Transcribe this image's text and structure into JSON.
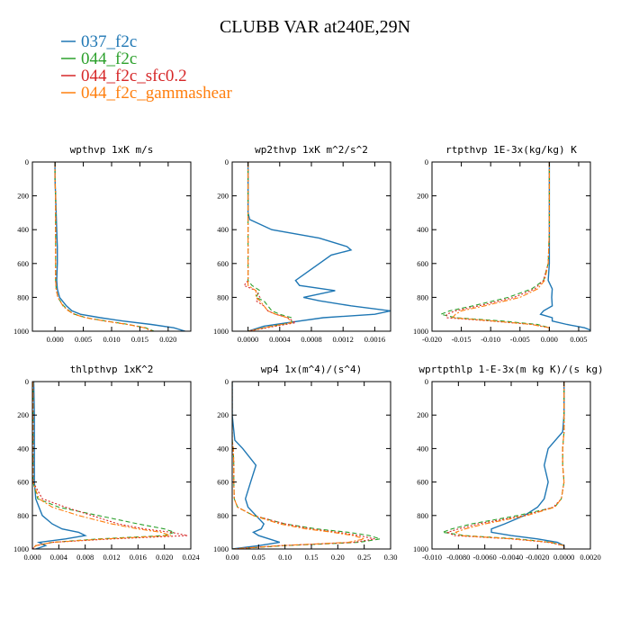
{
  "title": "CLUBB VAR at240E,29N",
  "legend": [
    {
      "label": "037_f2c",
      "color": "#1f77b4",
      "dash": "solid"
    },
    {
      "label": "044_f2c",
      "color": "#2ca02c",
      "dash": "dashed"
    },
    {
      "label": "044_f2c_sfc0.2",
      "color": "#d62728",
      "dash": "dotted"
    },
    {
      "label": "044_f2c_gammashear",
      "color": "#ff7f0e",
      "dash": "dashdot"
    }
  ],
  "chart_data": [
    {
      "type": "line",
      "title": "wpthvp  1xK m/s",
      "xlim": [
        -0.004,
        0.024
      ],
      "ylim": [
        1000,
        0
      ],
      "xticks": [
        "0.000",
        "0.005",
        "0.010",
        "0.015",
        "0.020"
      ],
      "xtick_values": [
        0,
        0.005,
        0.01,
        0.015,
        0.02
      ],
      "yticks": [
        0,
        200,
        400,
        600,
        800,
        1000
      ],
      "y": [
        0,
        100,
        200,
        300,
        400,
        500,
        600,
        700,
        750,
        800,
        850,
        880,
        900,
        920,
        940,
        960,
        980,
        1000
      ],
      "series": [
        {
          "name": "037_f2c",
          "values": [
            0,
            0,
            0.0001,
            0.0002,
            0.0003,
            0.0004,
            0.0004,
            0.0003,
            0.0004,
            0.0008,
            0.002,
            0.003,
            0.0045,
            0.008,
            0.012,
            0.017,
            0.021,
            0.023
          ]
        },
        {
          "name": "044_f2c",
          "values": [
            0,
            0,
            0.0001,
            0.0001,
            0.0001,
            0.0001,
            0.0001,
            0.0001,
            0.0002,
            0.0005,
            0.0015,
            0.0025,
            0.0035,
            0.0055,
            0.009,
            0.013,
            0.016,
            0.0175
          ]
        },
        {
          "name": "044_f2c_sfc0.2",
          "values": [
            0,
            0,
            0.0001,
            0.0001,
            0.0001,
            0.0001,
            0.0001,
            0.0001,
            0.0002,
            0.0005,
            0.0014,
            0.0024,
            0.0034,
            0.0054,
            0.0088,
            0.0128,
            0.0158,
            0.0172
          ]
        },
        {
          "name": "044_f2c_gammashear",
          "values": [
            0,
            0,
            0.0001,
            0.0001,
            0.0001,
            0.0001,
            0.0001,
            0.0001,
            0.0002,
            0.0005,
            0.0014,
            0.0024,
            0.0034,
            0.0054,
            0.0088,
            0.0128,
            0.0158,
            0.0172
          ]
        }
      ]
    },
    {
      "type": "line",
      "title": "wp2thvp  1xK m^2/s^2",
      "xlim": [
        -0.0002,
        0.0018
      ],
      "ylim": [
        1000,
        0
      ],
      "xticks": [
        "0.0000",
        "0.0004",
        "0.0008",
        "0.0012",
        "0.0016"
      ],
      "xtick_values": [
        0,
        0.0004,
        0.0008,
        0.0012,
        0.0016
      ],
      "yticks": [
        0,
        200,
        400,
        600,
        800,
        1000
      ],
      "y": [
        0,
        100,
        200,
        300,
        340,
        400,
        450,
        500,
        520,
        550,
        600,
        650,
        700,
        730,
        760,
        800,
        820,
        850,
        880,
        900,
        920,
        950,
        970,
        1000
      ],
      "series": [
        {
          "name": "037_f2c",
          "values": [
            0,
            0,
            0,
            0,
            2e-05,
            0.0003,
            0.0009,
            0.00125,
            0.0013,
            0.00105,
            0.0009,
            0.00075,
            0.0006,
            0.00065,
            0.0011,
            0.0007,
            0.0009,
            0.0013,
            0.0018,
            0.0016,
            0.00095,
            0.0005,
            0.0002,
            0
          ]
        },
        {
          "name": "044_f2c",
          "values": [
            0,
            0,
            0,
            0,
            0,
            0,
            0,
            0,
            0,
            0,
            0,
            0,
            0,
            5e-05,
            0.00015,
            0.0001,
            0.0002,
            0.00025,
            0.0003,
            0.0004,
            0.00055,
            0.00055,
            0.0003,
            0
          ]
        },
        {
          "name": "044_f2c_sfc0.2",
          "values": [
            0,
            0,
            0,
            0,
            0,
            0,
            0,
            0,
            0,
            0,
            0,
            0,
            0,
            -5e-05,
            0.0001,
            0.00015,
            0.0001,
            0.0002,
            0.00025,
            0.00035,
            0.0005,
            0.0006,
            0.00035,
            0
          ]
        },
        {
          "name": "044_f2c_gammashear",
          "values": [
            0,
            0,
            0,
            0,
            0,
            0,
            0,
            0,
            0,
            0,
            0,
            0,
            0,
            0,
            0.0001,
            0.0001,
            0.00015,
            0.0002,
            0.00025,
            0.00035,
            0.0005,
            0.00055,
            0.0003,
            0
          ]
        }
      ]
    },
    {
      "type": "line",
      "title": "rtpthvp  1E-3x(kg/kg) K",
      "xlim": [
        -0.02,
        0.007
      ],
      "ylim": [
        1000,
        0
      ],
      "xticks": [
        "-0.020",
        "-0.015",
        "-0.010",
        "-0.005",
        "0.000",
        "0.005"
      ],
      "xtick_values": [
        -0.02,
        -0.015,
        -0.01,
        -0.005,
        0,
        0.005
      ],
      "yticks": [
        0,
        200,
        400,
        600,
        800,
        1000
      ],
      "y": [
        0,
        200,
        400,
        600,
        700,
        750,
        800,
        850,
        880,
        900,
        920,
        940,
        960,
        980,
        1000
      ],
      "series": [
        {
          "name": "037_f2c",
          "values": [
            0,
            0,
            0,
            0,
            -0.0002,
            0.0005,
            0.0004,
            0.0005,
            -0.001,
            -0.0015,
            0.0005,
            0.0005,
            0.003,
            0.006,
            0.0075
          ]
        },
        {
          "name": "044_f2c",
          "values": [
            0,
            0,
            0,
            -0.0002,
            -0.001,
            -0.003,
            -0.007,
            -0.013,
            -0.017,
            -0.0185,
            -0.016,
            -0.008,
            -0.002,
            0,
            0
          ]
        },
        {
          "name": "044_f2c_sfc0.2",
          "values": [
            0,
            0,
            0,
            -0.0002,
            -0.001,
            -0.0025,
            -0.006,
            -0.012,
            -0.016,
            -0.0175,
            -0.0175,
            -0.01,
            -0.003,
            0,
            0
          ]
        },
        {
          "name": "044_f2c_gammashear",
          "values": [
            0,
            0,
            0,
            -0.0002,
            -0.0008,
            -0.002,
            -0.005,
            -0.011,
            -0.015,
            -0.016,
            -0.0165,
            -0.0095,
            -0.003,
            0,
            0
          ]
        }
      ]
    },
    {
      "type": "line",
      "title": "thlpthvp  1xK^2",
      "xlim": [
        0,
        0.024
      ],
      "ylim": [
        1000,
        0
      ],
      "xticks": [
        "0.000",
        "0.004",
        "0.008",
        "0.012",
        "0.016",
        "0.020",
        "0.024"
      ],
      "xtick_values": [
        0,
        0.004,
        0.008,
        0.012,
        0.016,
        0.02,
        0.024
      ],
      "yticks": [
        0,
        200,
        400,
        600,
        800,
        1000
      ],
      "y": [
        0,
        200,
        400,
        600,
        700,
        750,
        800,
        850,
        880,
        900,
        920,
        940,
        960,
        980,
        1000
      ],
      "series": [
        {
          "name": "037_f2c",
          "values": [
            0.0002,
            0.0003,
            0.0003,
            0.0003,
            0.0005,
            0.001,
            0.0015,
            0.003,
            0.0045,
            0.007,
            0.008,
            0.005,
            0.001,
            0.002,
            0.0005
          ]
        },
        {
          "name": "044_f2c",
          "values": [
            0.0001,
            0.0001,
            0.0001,
            0.0001,
            0.0008,
            0.004,
            0.01,
            0.016,
            0.02,
            0.0215,
            0.02,
            0.01,
            0.003,
            0.0005,
            0
          ]
        },
        {
          "name": "044_f2c_sfc0.2",
          "values": [
            0.0001,
            0.0001,
            0.0001,
            0.0001,
            0.0015,
            0.005,
            0.009,
            0.013,
            0.017,
            0.021,
            0.0235,
            0.012,
            0.003,
            0.0005,
            0
          ]
        },
        {
          "name": "044_f2c_gammashear",
          "values": [
            0.0001,
            0.0001,
            0.0001,
            0.0001,
            0.001,
            0.003,
            0.007,
            0.012,
            0.016,
            0.0195,
            0.021,
            0.011,
            0.003,
            0.0005,
            0
          ]
        }
      ]
    },
    {
      "type": "line",
      "title": "wp4  1x(m^4)/(s^4)",
      "xlim": [
        0,
        0.3
      ],
      "ylim": [
        1000,
        0
      ],
      "xticks": [
        "0.00",
        "0.05",
        "0.10",
        "0.15",
        "0.20",
        "0.25",
        "0.30"
      ],
      "xtick_values": [
        0,
        0.05,
        0.1,
        0.15,
        0.2,
        0.25,
        0.3
      ],
      "yticks": [
        0,
        200,
        400,
        600,
        800,
        1000
      ],
      "y": [
        0,
        200,
        350,
        400,
        500,
        600,
        700,
        750,
        800,
        850,
        880,
        900,
        920,
        940,
        960,
        980,
        1000
      ],
      "series": [
        {
          "name": "037_f2c",
          "values": [
            0,
            0,
            0.005,
            0.02,
            0.045,
            0.035,
            0.025,
            0.03,
            0.045,
            0.06,
            0.055,
            0.04,
            0.05,
            0.07,
            0.09,
            0.05,
            0
          ]
        },
        {
          "name": "044_f2c",
          "values": [
            0,
            0,
            0,
            0.002,
            0.003,
            0.003,
            0.004,
            0.01,
            0.04,
            0.1,
            0.16,
            0.22,
            0.26,
            0.28,
            0.24,
            0.1,
            0
          ]
        },
        {
          "name": "044_f2c_sfc0.2",
          "values": [
            0,
            0,
            0,
            0.002,
            0.003,
            0.003,
            0.004,
            0.01,
            0.04,
            0.1,
            0.15,
            0.2,
            0.24,
            0.27,
            0.23,
            0.09,
            0
          ]
        },
        {
          "name": "044_f2c_gammashear",
          "values": [
            0,
            0,
            0,
            0.002,
            0.003,
            0.003,
            0.004,
            0.01,
            0.04,
            0.09,
            0.14,
            0.19,
            0.23,
            0.25,
            0.22,
            0.09,
            0
          ]
        }
      ]
    },
    {
      "type": "line",
      "title": "wprtpthlp  1-E-3x(m kg K)/(s kg)",
      "xlim": [
        -0.01,
        0.002
      ],
      "ylim": [
        1000,
        0
      ],
      "xticks": [
        "-0.010",
        "-0.0080",
        "-0.0060",
        "-0.0040",
        "-0.0020",
        "0.0000",
        "0.0020"
      ],
      "xtick_values": [
        -0.01,
        -0.008,
        -0.006,
        -0.004,
        -0.002,
        0,
        0.002
      ],
      "yticks": [
        0,
        200,
        400,
        600,
        800,
        1000
      ],
      "y": [
        0,
        200,
        300,
        400,
        500,
        600,
        700,
        750,
        800,
        850,
        880,
        900,
        920,
        940,
        960,
        980,
        1000
      ],
      "series": [
        {
          "name": "037_f2c",
          "values": [
            0,
            0,
            -0.0001,
            -0.0012,
            -0.0015,
            -0.0012,
            -0.0015,
            -0.002,
            -0.003,
            -0.0045,
            -0.0055,
            -0.0055,
            -0.004,
            -0.002,
            -0.0005,
            0,
            0
          ]
        },
        {
          "name": "044_f2c",
          "values": [
            0,
            0,
            0,
            -0.0001,
            -0.0001,
            0,
            -0.0002,
            -0.0007,
            -0.0035,
            -0.007,
            -0.0085,
            -0.0092,
            -0.0075,
            -0.0035,
            -0.001,
            0,
            0
          ]
        },
        {
          "name": "044_f2c_sfc0.2",
          "values": [
            0,
            0,
            0,
            -0.0001,
            -0.0001,
            0,
            -0.0002,
            -0.0008,
            -0.003,
            -0.0065,
            -0.008,
            -0.0088,
            -0.0083,
            -0.004,
            -0.0012,
            0,
            0
          ]
        },
        {
          "name": "044_f2c_gammashear",
          "values": [
            0,
            0,
            0,
            -0.0001,
            -0.0001,
            0,
            -0.0002,
            -0.0007,
            -0.0028,
            -0.006,
            -0.0075,
            -0.0082,
            -0.0078,
            -0.0038,
            -0.001,
            0,
            0
          ]
        }
      ]
    }
  ]
}
